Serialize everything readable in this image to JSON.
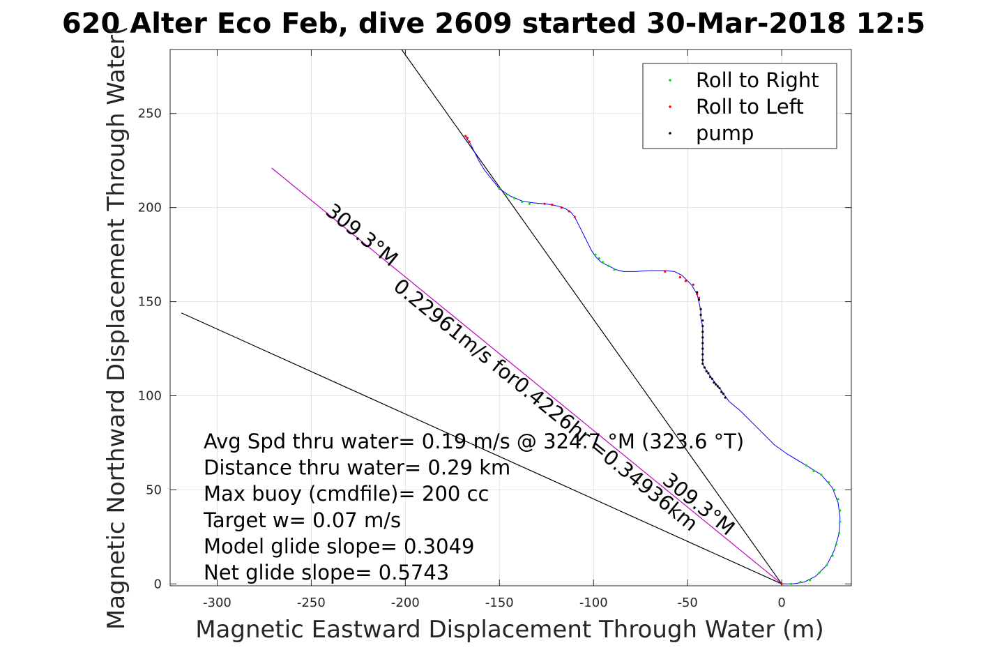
{
  "chart_data": {
    "type": "scatter",
    "title": "620 Alter Eco Feb, dive 2609 started 30-Mar-2018 12:5",
    "xlabel": "Magnetic Eastward Displacement Through Water (m)",
    "ylabel": "Magnetic Northward Displacement Through Water(",
    "xlim": [
      -325,
      37
    ],
    "ylim": [
      -1,
      284
    ],
    "xticks": [
      -300,
      -250,
      -200,
      -150,
      -100,
      -50,
      0
    ],
    "yticks": [
      0,
      50,
      100,
      150,
      200,
      250
    ],
    "grid": true,
    "legend_position": "top-right",
    "legend": [
      {
        "label": "Roll to Right",
        "color": "#00e000"
      },
      {
        "label": "Roll to Left",
        "color": "#ff0000"
      },
      {
        "label": "pump",
        "color": "#000000"
      }
    ],
    "track": {
      "name": "track",
      "color": "#0000ff",
      "points": [
        [
          0,
          0
        ],
        [
          6,
          0
        ],
        [
          12,
          1
        ],
        [
          18,
          4
        ],
        [
          24,
          10
        ],
        [
          28,
          18
        ],
        [
          30.5,
          27
        ],
        [
          31,
          35
        ],
        [
          30,
          43
        ],
        [
          27,
          51
        ],
        [
          21,
          58
        ],
        [
          13,
          63
        ],
        [
          3,
          69
        ],
        [
          -4,
          74
        ],
        [
          -10,
          80
        ],
        [
          -16,
          86
        ],
        [
          -22,
          92
        ],
        [
          -28,
          97
        ],
        [
          -33,
          104
        ],
        [
          -37,
          109
        ],
        [
          -41,
          115
        ],
        [
          -42,
          117
        ],
        [
          -42,
          121
        ],
        [
          -42,
          125
        ],
        [
          -42,
          129
        ],
        [
          -42,
          133
        ],
        [
          -42,
          137
        ],
        [
          -43,
          141
        ],
        [
          -43,
          145
        ],
        [
          -44,
          150
        ],
        [
          -45,
          154
        ],
        [
          -48,
          159
        ],
        [
          -50,
          161
        ],
        [
          -53,
          164
        ],
        [
          -57,
          166
        ],
        [
          -62,
          166.5
        ],
        [
          -70,
          166.5
        ],
        [
          -78,
          166
        ],
        [
          -84,
          166
        ],
        [
          -88,
          167
        ],
        [
          -92,
          169
        ],
        [
          -96,
          171
        ],
        [
          -99,
          174
        ],
        [
          -101,
          177
        ],
        [
          -103,
          181
        ],
        [
          -105,
          185
        ],
        [
          -107,
          189
        ],
        [
          -109,
          193
        ],
        [
          -110,
          195
        ],
        [
          -112,
          197.5
        ],
        [
          -115,
          199.5
        ],
        [
          -118,
          200.5
        ],
        [
          -122,
          201.5
        ],
        [
          -126,
          202
        ],
        [
          -132,
          202.5
        ],
        [
          -138,
          203.5
        ],
        [
          -144,
          206
        ],
        [
          -150,
          210
        ],
        [
          -154,
          215
        ],
        [
          -158,
          220
        ],
        [
          -161,
          225
        ],
        [
          -164,
          231
        ],
        [
          -166,
          235
        ],
        [
          -167,
          236
        ],
        [
          -168,
          238
        ]
      ]
    },
    "roll_right_points": [
      [
        5,
        0
      ],
      [
        10,
        1
      ],
      [
        15,
        2
      ],
      [
        20,
        6
      ],
      [
        24,
        10
      ],
      [
        27,
        15
      ],
      [
        29,
        21
      ],
      [
        30.5,
        27
      ],
      [
        31,
        33
      ],
      [
        31,
        39
      ],
      [
        30,
        45
      ],
      [
        28,
        50
      ],
      [
        25,
        54
      ],
      [
        21,
        58
      ],
      [
        17,
        60
      ],
      [
        13,
        63
      ],
      [
        -89,
        167
      ],
      [
        -92,
        169
      ],
      [
        -95,
        171
      ],
      [
        -97,
        173
      ],
      [
        -99,
        175
      ],
      [
        -134,
        202
      ],
      [
        -138,
        203
      ],
      [
        -142,
        205
      ],
      [
        -146,
        207
      ],
      [
        -150,
        210
      ]
    ],
    "roll_left_points": [
      [
        0,
        0
      ],
      [
        -62,
        166
      ],
      [
        -54,
        163
      ],
      [
        -51,
        161
      ],
      [
        -47,
        159
      ],
      [
        -45,
        154
      ],
      [
        -44,
        152
      ],
      [
        -110,
        195
      ],
      [
        -113,
        198
      ],
      [
        -117,
        200
      ],
      [
        -122,
        201.5
      ],
      [
        -126,
        202
      ],
      [
        -166,
        235
      ],
      [
        -167,
        237
      ],
      [
        -168,
        238
      ]
    ],
    "pump_points": [
      [
        -45,
        155
      ],
      [
        -44,
        151
      ],
      [
        -43,
        146
      ],
      [
        -43,
        143
      ],
      [
        -42,
        140
      ],
      [
        -42,
        137
      ],
      [
        -42,
        134
      ],
      [
        -42,
        131
      ],
      [
        -42,
        128
      ],
      [
        -42,
        125
      ],
      [
        -42,
        122
      ],
      [
        -42,
        119
      ],
      [
        -42,
        117
      ],
      [
        -41,
        115
      ],
      [
        -40,
        113
      ],
      [
        -39,
        112
      ],
      [
        -38,
        110
      ],
      [
        -37,
        109
      ],
      [
        -36,
        107
      ],
      [
        -35,
        106
      ],
      [
        -34,
        105
      ],
      [
        -33,
        104
      ],
      [
        -32,
        102
      ],
      [
        -31,
        101
      ],
      [
        -30,
        99
      ]
    ],
    "reference_lines": [
      {
        "name": "heading-line-1",
        "color": "#000000",
        "from": [
          -202,
          284
        ],
        "to": [
          0,
          0
        ]
      },
      {
        "name": "heading-line-2",
        "color": "#000000",
        "from": [
          -319,
          144
        ],
        "to": [
          0,
          0
        ]
      },
      {
        "name": "net-heading-line",
        "color": "#c000c0",
        "from": [
          -271,
          221
        ],
        "to": [
          0,
          0
        ]
      }
    ],
    "line_labels": [
      {
        "name": "heading-label-1",
        "text": "309.3°M",
        "x": -243,
        "y": 197,
        "angle": 39.2,
        "anchor": "start"
      },
      {
        "name": "heading-label-2",
        "text": "309.3°M",
        "x": -64,
        "y": 54,
        "angle": 39.2,
        "anchor": "start"
      },
      {
        "name": "speed-label",
        "text": "0.22961m/s for0.4226hr =0.34936km",
        "x": -207,
        "y": 157,
        "angle": 39.2,
        "anchor": "start"
      }
    ],
    "stats": [
      "Avg Spd thru water=  0.19 m/s @ 324.7 °M (323.6 °T)",
      "Distance thru water=  0.29 km",
      "Max buoy (cmdfile)= 200 cc",
      "Target w= 0.07 m/s",
      "Model glide slope= 0.3049",
      "Net glide slope= 0.5743"
    ]
  }
}
